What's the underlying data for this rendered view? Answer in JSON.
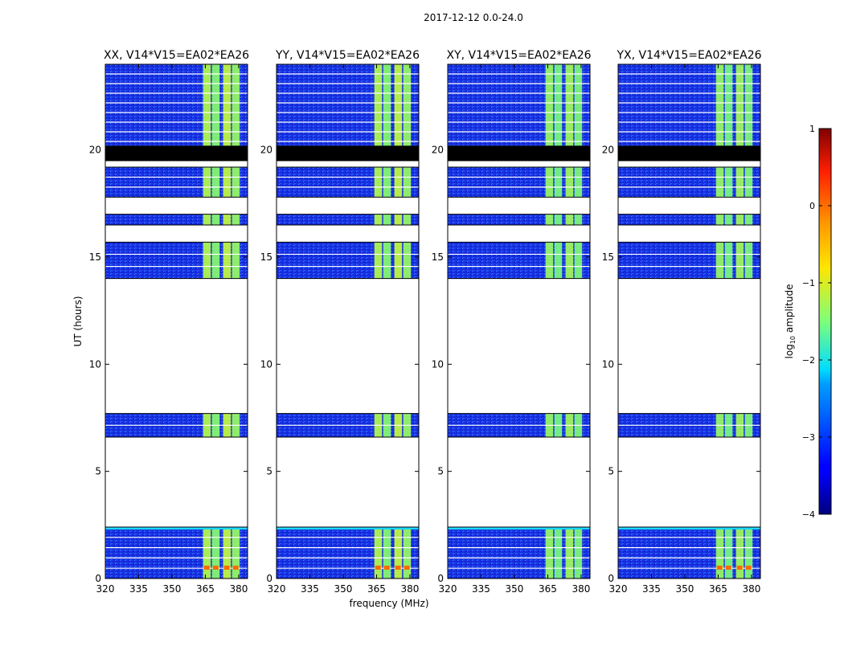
{
  "figure_title": "2017-12-12 0.0-24.0",
  "chart_data": {
    "type": "heatmap",
    "title": "2017-12-12 0.0-24.0",
    "xlabel": "frequency (MHz)",
    "ylabel": "UT (hours)",
    "xlim": [
      320,
      384
    ],
    "ylim": [
      0,
      24
    ],
    "x_ticks": [
      320,
      335,
      350,
      365,
      380
    ],
    "y_ticks": [
      0,
      5,
      10,
      15,
      20
    ],
    "panels": [
      {
        "title": "XX, V14*V15=EA02*EA26",
        "polarization": "XX"
      },
      {
        "title": "YY, V14*V15=EA02*EA26",
        "polarization": "YY"
      },
      {
        "title": "XY, V14*V15=EA02*EA26",
        "polarization": "XY"
      },
      {
        "title": "YX, V14*V15=EA02*EA26",
        "polarization": "YX"
      }
    ],
    "data_ut_ranges": [
      [
        0,
        2.4
      ],
      [
        6.6,
        7.7
      ],
      [
        14.0,
        15.7
      ],
      [
        16.5,
        17.0
      ],
      [
        17.8,
        19.2
      ],
      [
        19.5,
        24.0
      ]
    ],
    "blank_ut_ranges": [
      [
        2.4,
        6.6
      ],
      [
        7.7,
        14.0
      ],
      [
        15.7,
        16.5
      ],
      [
        17.0,
        17.8
      ]
    ],
    "flagged_black_ut_ranges": [
      [
        19.5,
        20.2
      ]
    ],
    "bright_channel_mhz_ranges": [
      [
        364,
        368
      ],
      [
        368,
        372
      ],
      [
        373,
        377
      ],
      [
        377,
        381
      ]
    ],
    "colorbar": {
      "label": "log10 amplitude",
      "range": [
        -4,
        1
      ],
      "ticks": [
        1,
        0,
        -1,
        -2,
        -3,
        -4
      ],
      "colormap": "jet"
    }
  },
  "colors": {
    "low": "#00008f",
    "mid": "#00ffff",
    "high": "#ffff00",
    "max": "#800000",
    "flag": "#000000"
  }
}
